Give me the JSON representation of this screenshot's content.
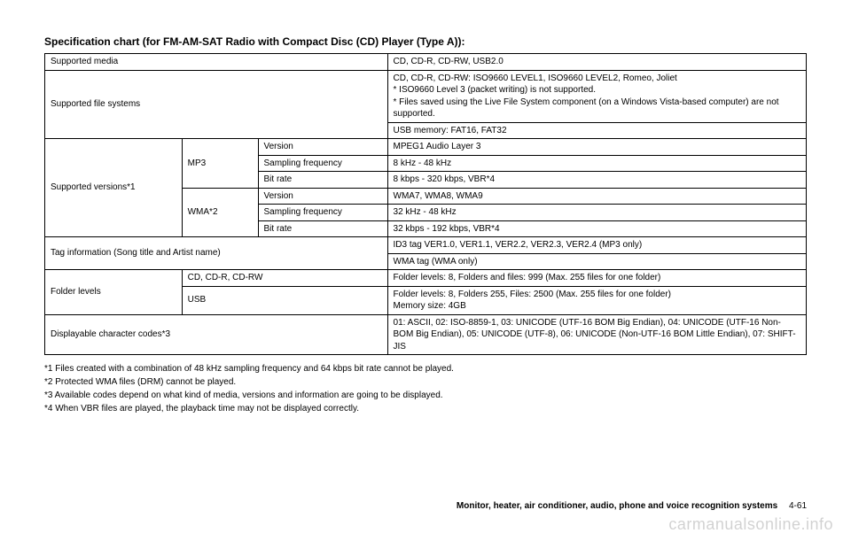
{
  "title": "Specification chart (for FM-AM-SAT Radio with Compact Disc (CD) Player (Type A)):",
  "table": {
    "supported_media": {
      "label": "Supported media",
      "value": "CD, CD-R, CD-RW, USB2.0"
    },
    "supported_fs": {
      "label": "Supported file systems",
      "value_top": "CD, CD-R, CD-RW: ISO9660 LEVEL1, ISO9660 LEVEL2, Romeo, Joliet\n* ISO9660 Level 3 (packet writing) is not supported.\n* Files saved using the Live File System component (on a Windows Vista-based computer) are not supported.",
      "value_bottom": "USB memory: FAT16, FAT32"
    },
    "versions": {
      "label": "Supported versions*1",
      "mp3": {
        "label": "MP3",
        "rows": [
          {
            "k": "Version",
            "v": "MPEG1 Audio Layer 3"
          },
          {
            "k": "Sampling frequency",
            "v": "8 kHz - 48 kHz"
          },
          {
            "k": "Bit rate",
            "v": "8 kbps - 320 kbps, VBR*4"
          }
        ]
      },
      "wma": {
        "label": "WMA*2",
        "rows": [
          {
            "k": "Version",
            "v": "WMA7, WMA8, WMA9"
          },
          {
            "k": "Sampling frequency",
            "v": "32 kHz - 48 kHz"
          },
          {
            "k": "Bit rate",
            "v": "32 kbps - 192 kbps, VBR*4"
          }
        ]
      }
    },
    "tag": {
      "label": "Tag information (Song title and Artist name)",
      "v1": "ID3 tag VER1.0, VER1.1, VER2.2, VER2.3, VER2.4 (MP3 only)",
      "v2": "WMA tag (WMA only)"
    },
    "folder": {
      "label": "Folder levels",
      "cd": {
        "k": "CD, CD-R, CD-RW",
        "v": "Folder levels: 8, Folders and files: 999 (Max. 255 files for one folder)"
      },
      "usb": {
        "k": "USB",
        "v": "Folder levels: 8, Folders 255, Files: 2500 (Max. 255 files for one folder)\nMemory size: 4GB"
      }
    },
    "codes": {
      "label": "Displayable character codes*3",
      "value": "01: ASCII, 02: ISO-8859-1, 03: UNICODE (UTF-16 BOM Big Endian), 04: UNICODE (UTF-16 Non-BOM Big Endian), 05: UNICODE (UTF-8), 06: UNICODE (Non-UTF-16 BOM Little Endian), 07: SHIFT-JIS"
    }
  },
  "footnotes": [
    "*1    Files created with a combination of 48 kHz sampling frequency and 64 kbps bit rate cannot be played.",
    "*2    Protected WMA files (DRM) cannot be played.",
    "*3    Available codes depend on what kind of media, versions and information are going to be displayed.",
    "*4    When VBR files are played, the playback time may not be displayed correctly."
  ],
  "footer": {
    "section": "Monitor, heater, air conditioner, audio, phone and voice recognition systems",
    "page": "4-61"
  },
  "watermark": "carmanualsonline.info"
}
